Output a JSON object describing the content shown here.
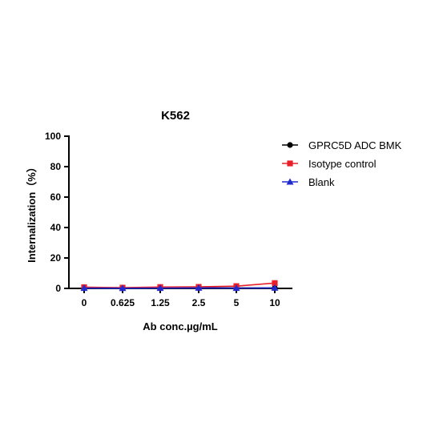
{
  "chart_data": {
    "type": "line",
    "title": "K562",
    "xlabel": "Ab conc.µg/mL",
    "ylabel": "Internalization（%）",
    "categories": [
      "0",
      "0.625",
      "1.25",
      "2.5",
      "5",
      "10"
    ],
    "ylim": [
      0,
      100
    ],
    "yticks": [
      0,
      20,
      40,
      60,
      80,
      100
    ],
    "grid": false,
    "legend_position": "right",
    "series": [
      {
        "name": "GPRC5D ADC BMK",
        "marker": "circle",
        "color": "#000000",
        "values": [
          0.5,
          0.3,
          0.5,
          0.4,
          0.3,
          0.3
        ]
      },
      {
        "name": "Isotype control",
        "marker": "square",
        "color": "#e8202a",
        "values": [
          0.8,
          0.5,
          0.9,
          1.0,
          1.5,
          3.5
        ]
      },
      {
        "name": "Blank",
        "marker": "triangle",
        "color": "#1f2bd0",
        "values": [
          0.2,
          0.1,
          0.2,
          0.3,
          0.2,
          0.3
        ]
      }
    ]
  }
}
